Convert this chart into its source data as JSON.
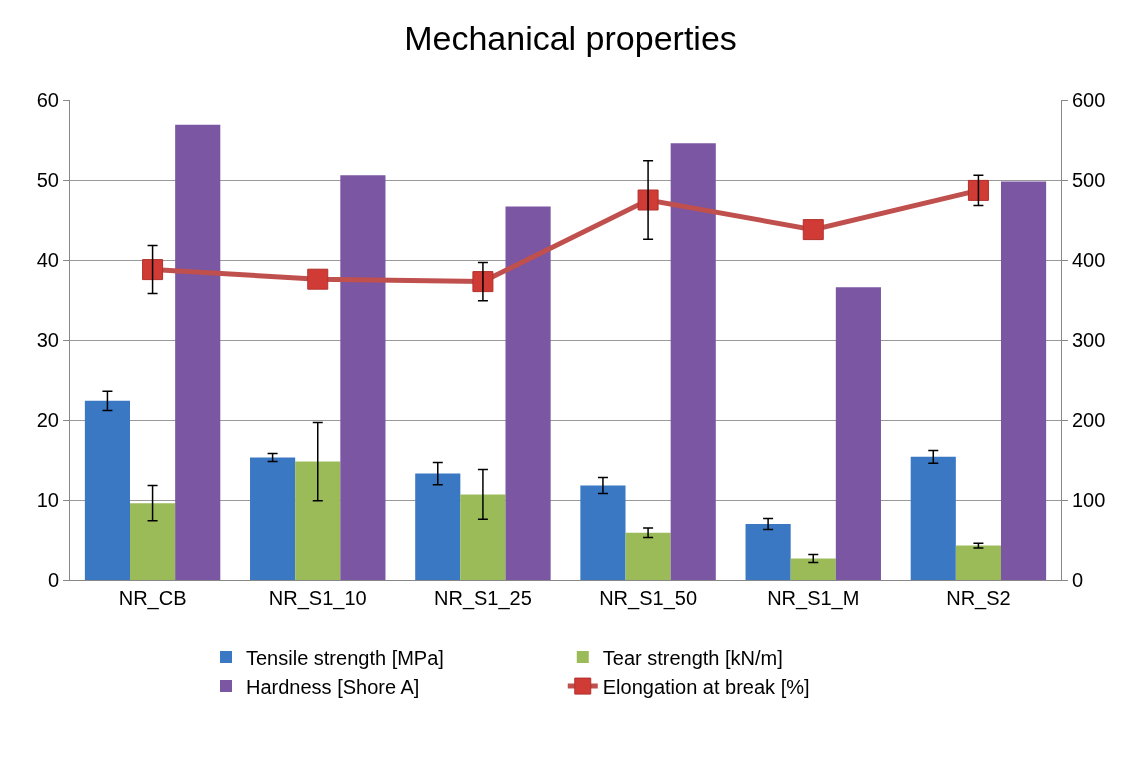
{
  "chart_data": {
    "type": "bar",
    "title": "Mechanical properties",
    "categories": [
      "NR_CB",
      "NR_S1_10",
      "NR_S1_25",
      "NR_S1_50",
      "NR_S1_M",
      "NR_S2"
    ],
    "series": [
      {
        "name": "Tensile strength [MPa]",
        "color": "#3a78c4",
        "values": [
          22.4,
          15.3,
          13.3,
          11.8,
          7.0,
          15.4
        ],
        "errors": [
          1.2,
          0.5,
          1.4,
          1.0,
          0.7,
          0.8
        ]
      },
      {
        "name": "Tear strength [kN/m]",
        "color": "#9bbb59",
        "values": [
          9.6,
          14.8,
          10.7,
          5.9,
          2.7,
          4.3
        ],
        "errors": [
          2.2,
          4.9,
          3.1,
          0.6,
          0.5,
          0.3
        ]
      },
      {
        "name": "Hardness [Shore A]",
        "color": "#7a56a3",
        "values": [
          56.9,
          50.6,
          46.7,
          54.6,
          36.6,
          49.8
        ]
      },
      {
        "name": "Elongation at break [%]",
        "color": "#c0504d",
        "type": "line",
        "axis": "y2",
        "marker": "square",
        "values": [
          388,
          376,
          373,
          475,
          438,
          487
        ],
        "errors": [
          30,
          null,
          24,
          49,
          null,
          19
        ]
      }
    ],
    "ylim": [
      0,
      60
    ],
    "yticks": [
      0,
      10,
      20,
      30,
      40,
      50,
      60
    ],
    "y2lim": [
      0,
      600
    ],
    "y2ticks": [
      0,
      100,
      200,
      300,
      400,
      500,
      600
    ],
    "grid": "y",
    "legend": "bottom"
  }
}
